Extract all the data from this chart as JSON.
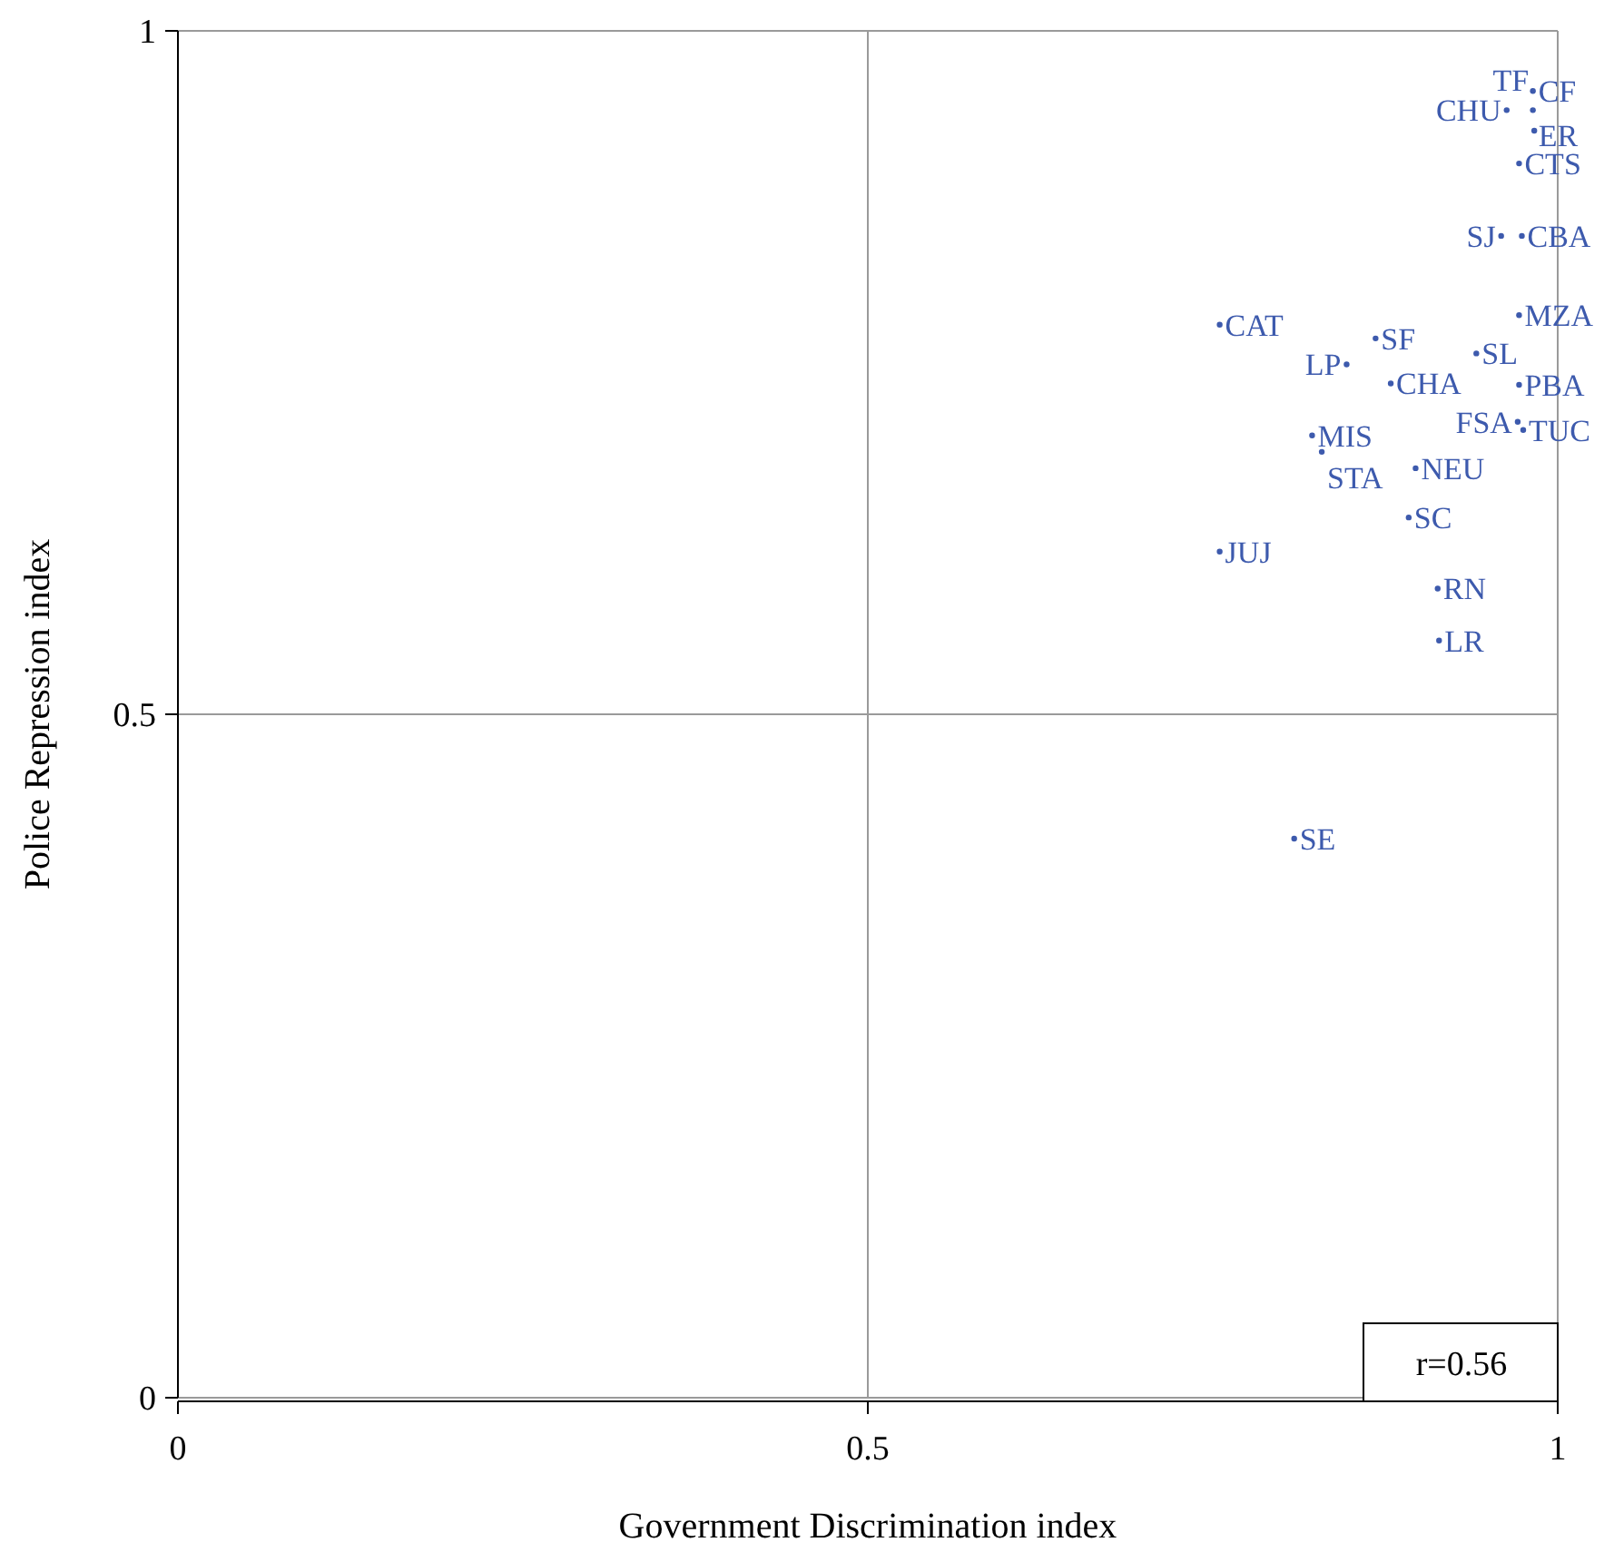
{
  "chart_data": {
    "type": "scatter",
    "xlabel": "Government Discrimination index",
    "ylabel": "Police Repression index",
    "xlim": [
      0,
      1
    ],
    "ylim": [
      0,
      1
    ],
    "xticks": [
      0,
      0.5,
      1
    ],
    "yticks": [
      0,
      0.5,
      1
    ],
    "grid": true,
    "marker": "circle",
    "annotations": [
      "r=0.56"
    ],
    "series": [
      {
        "color": "#3d5aad",
        "x": [
          0.982,
          0.963,
          0.982,
          0.983,
          0.972,
          0.959,
          0.974,
          0.755,
          0.972,
          0.868,
          0.847,
          0.941,
          0.879,
          0.972,
          0.971,
          0.975,
          0.822,
          0.829,
          0.897,
          0.892,
          0.755,
          0.913,
          0.914,
          0.809
        ],
        "values": [
          0.956,
          0.942,
          0.942,
          0.927,
          0.903,
          0.85,
          0.85,
          0.785,
          0.792,
          0.775,
          0.756,
          0.764,
          0.742,
          0.741,
          0.714,
          0.708,
          0.704,
          0.692,
          0.68,
          0.644,
          0.619,
          0.592,
          0.554,
          0.409
        ],
        "value_labels": [
          "CF",
          "CHU",
          "ER",
          "TF",
          "CTS",
          "SJ",
          "CBA",
          "CAT",
          "MZA",
          "SF",
          "LP",
          "SL",
          "CHA",
          "PBA",
          "FSA",
          "TUC",
          "MIS",
          "STA",
          "NEU",
          "SC",
          "JUJ",
          "RN",
          "LR",
          "SE"
        ]
      }
    ]
  }
}
